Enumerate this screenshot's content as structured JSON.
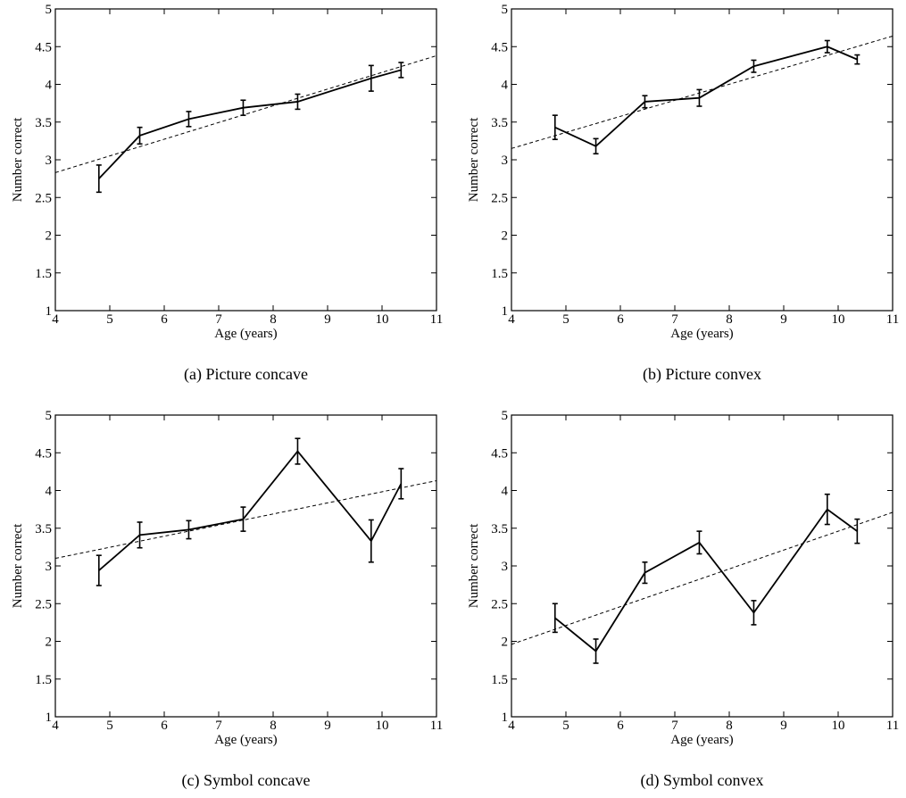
{
  "chart_data": [
    {
      "type": "line",
      "caption": "(a)  Picture concave",
      "xlabel": "Age (years)",
      "ylabel": "Number correct",
      "xlim": [
        4,
        11
      ],
      "ylim": [
        1,
        5
      ],
      "xticks": [
        4,
        5,
        6,
        7,
        8,
        9,
        10,
        11
      ],
      "yticks": [
        1,
        1.5,
        2,
        2.5,
        3,
        3.5,
        4,
        4.5,
        5
      ],
      "grid": false,
      "series": [
        {
          "x": [
            4.8,
            5.55,
            6.45,
            7.45,
            8.45,
            9.8,
            10.35
          ],
          "y": [
            2.75,
            3.32,
            3.54,
            3.69,
            3.77,
            4.08,
            4.19
          ],
          "err": [
            0.18,
            0.11,
            0.1,
            0.1,
            0.1,
            0.17,
            0.1
          ]
        }
      ],
      "fit": {
        "x": [
          4,
          11
        ],
        "y": [
          2.83,
          4.38
        ]
      }
    },
    {
      "type": "line",
      "caption": "(b)  Picture convex",
      "xlabel": "Age (years)",
      "ylabel": "Number correct",
      "xlim": [
        4,
        11
      ],
      "ylim": [
        1,
        5
      ],
      "xticks": [
        4,
        5,
        6,
        7,
        8,
        9,
        10,
        11
      ],
      "yticks": [
        1,
        1.5,
        2,
        2.5,
        3,
        3.5,
        4,
        4.5,
        5
      ],
      "grid": false,
      "series": [
        {
          "x": [
            4.8,
            5.55,
            6.45,
            7.45,
            8.45,
            9.8,
            10.35
          ],
          "y": [
            3.43,
            3.18,
            3.77,
            3.82,
            4.24,
            4.5,
            4.33
          ],
          "err": [
            0.16,
            0.1,
            0.08,
            0.11,
            0.08,
            0.08,
            0.06
          ]
        }
      ],
      "fit": {
        "x": [
          4,
          11
        ],
        "y": [
          3.15,
          4.64
        ]
      }
    },
    {
      "type": "line",
      "caption": "(c)  Symbol concave",
      "xlabel": "Age (years)",
      "ylabel": "Number correct",
      "xlim": [
        4,
        11
      ],
      "ylim": [
        1,
        5
      ],
      "xticks": [
        4,
        5,
        6,
        7,
        8,
        9,
        10,
        11
      ],
      "yticks": [
        1,
        1.5,
        2,
        2.5,
        3,
        3.5,
        4,
        4.5,
        5
      ],
      "grid": false,
      "series": [
        {
          "x": [
            4.8,
            5.55,
            6.45,
            7.45,
            8.45,
            9.8,
            10.35
          ],
          "y": [
            2.94,
            3.41,
            3.48,
            3.62,
            4.52,
            3.33,
            4.09
          ],
          "err": [
            0.2,
            0.17,
            0.12,
            0.16,
            0.17,
            0.28,
            0.2
          ]
        }
      ],
      "fit": {
        "x": [
          4,
          11
        ],
        "y": [
          3.1,
          4.13
        ]
      }
    },
    {
      "type": "line",
      "caption": "(d)  Symbol convex",
      "xlabel": "Age (years)",
      "ylabel": "Number correct",
      "xlim": [
        4,
        11
      ],
      "ylim": [
        1,
        5
      ],
      "xticks": [
        4,
        5,
        6,
        7,
        8,
        9,
        10,
        11
      ],
      "yticks": [
        1,
        1.5,
        2,
        2.5,
        3,
        3.5,
        4,
        4.5,
        5
      ],
      "grid": false,
      "series": [
        {
          "x": [
            4.8,
            5.55,
            6.45,
            7.45,
            8.45,
            9.8,
            10.35
          ],
          "y": [
            2.31,
            1.87,
            2.91,
            3.31,
            2.38,
            3.75,
            3.46
          ],
          "err": [
            0.19,
            0.16,
            0.14,
            0.15,
            0.16,
            0.2,
            0.16
          ]
        }
      ],
      "fit": {
        "x": [
          4,
          11
        ],
        "y": [
          1.96,
          3.71
        ]
      }
    }
  ]
}
